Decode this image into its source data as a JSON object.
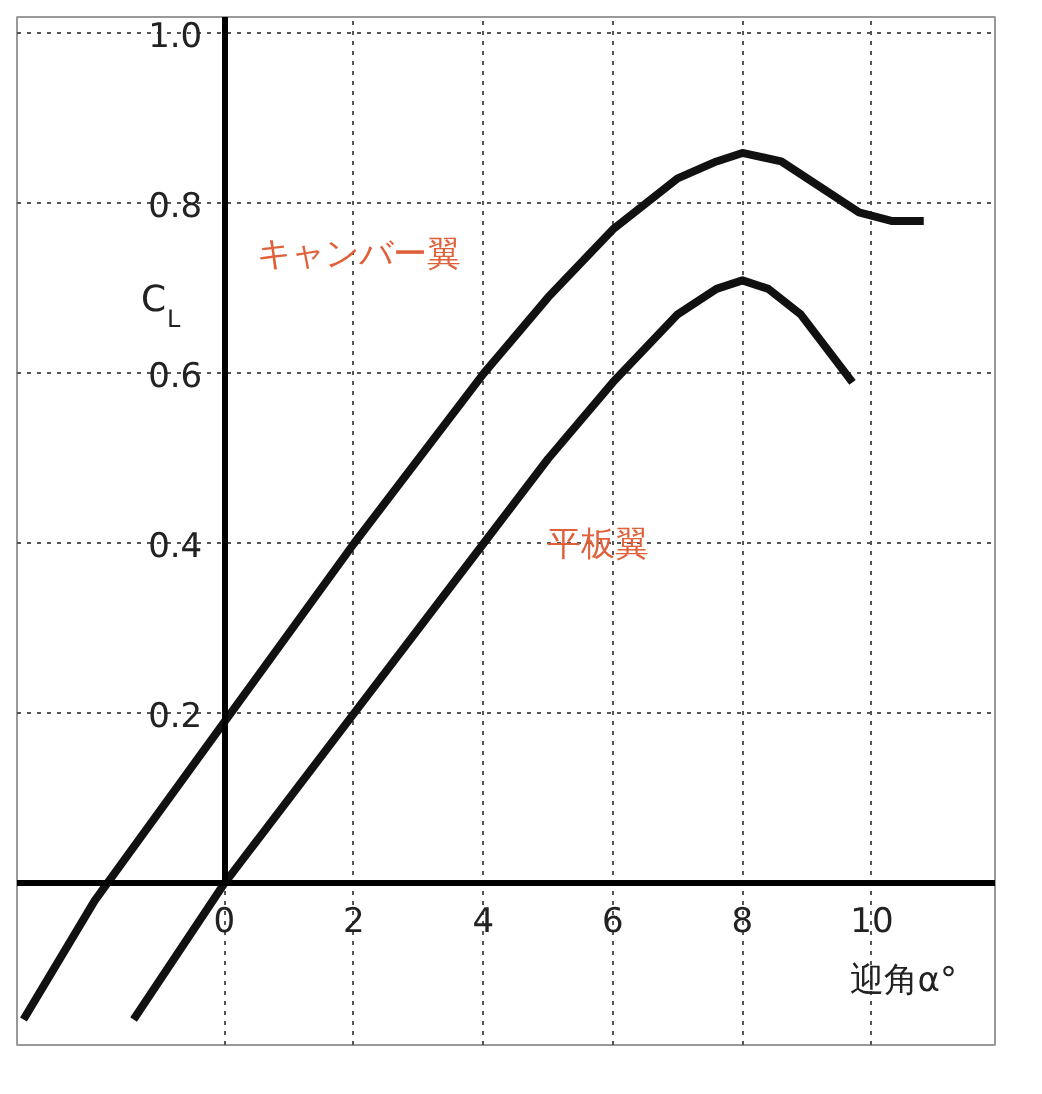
{
  "chart_data": {
    "type": "line",
    "ylabel": "C$_{L}$",
    "xlabel": "迎角α°",
    "xlim": [
      -3.2,
      11.9
    ],
    "ylim": [
      -0.19,
      1.02
    ],
    "xticks": [
      0,
      2,
      4,
      6,
      8,
      10
    ],
    "yticks": [
      0.2,
      0.4,
      0.6,
      0.8,
      {
        "value": 1.0,
        "label": "1.0"
      }
    ],
    "grid": true,
    "marker": "none",
    "line_style": "solid",
    "series": [
      {
        "color": "#111111",
        "x": [
          -3.1,
          -2,
          0,
          2,
          4,
          5,
          6,
          7,
          7.6,
          8,
          8.6,
          9.2,
          9.8,
          10.3,
          10.8
        ],
        "values": [
          -0.16,
          -0.02,
          0.19,
          0.4,
          0.6,
          0.69,
          0.77,
          0.83,
          0.85,
          0.86,
          0.85,
          0.82,
          0.79,
          0.78,
          0.78
        ]
      },
      {
        "color": "#111111",
        "x": [
          -1.4,
          0,
          2,
          4,
          5,
          6,
          7,
          7.6,
          8,
          8.4,
          8.9,
          9.3,
          9.7
        ],
        "values": [
          -0.16,
          0,
          0.2,
          0.4,
          0.5,
          0.59,
          0.67,
          0.7,
          0.71,
          0.7,
          0.67,
          0.63,
          0.59
        ]
      }
    ],
    "annotations": [
      "キャンバー翼",
      "平板翼"
    ]
  }
}
